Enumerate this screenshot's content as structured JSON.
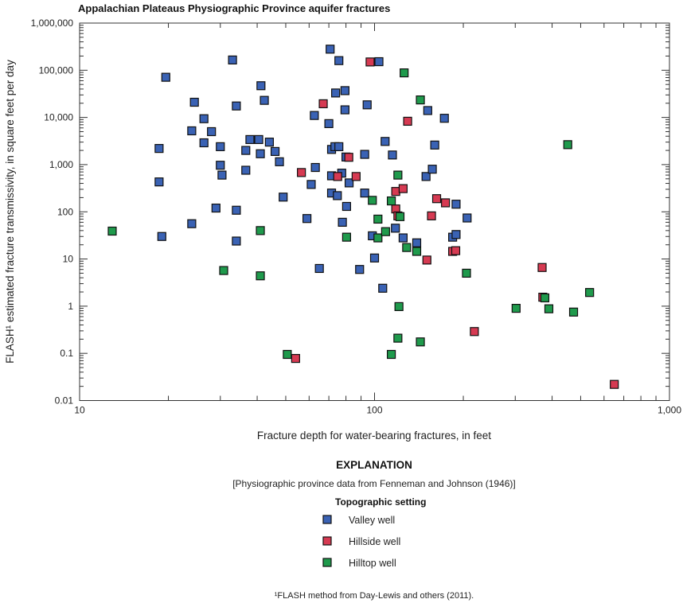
{
  "chart_data": {
    "type": "scatter",
    "title": "Appalachian Plateaus Physiographic Province aquifer fractures",
    "xlabel": "Fracture depth for water-bearing fractures, in feet",
    "ylabel": "FLASH¹ estimated fracture transmissivity, in square feet per day",
    "xscale": "log",
    "yscale": "log",
    "xlim": [
      10,
      1000
    ],
    "ylim": [
      0.01,
      1000000
    ],
    "xticks": [
      10,
      100,
      1000
    ],
    "xtick_labels": [
      "10",
      "100",
      "1,000"
    ],
    "yticks": [
      1000000,
      100000,
      10000,
      1000,
      100,
      10,
      1,
      0.1,
      0.01
    ],
    "ytick_labels": [
      "1,000,000",
      "100,000",
      "10,000",
      "1,000",
      "100",
      "10",
      "1",
      "0.1",
      "0.01"
    ],
    "grid": false,
    "legend_placement": "below",
    "series": [
      {
        "name": "Valley well",
        "color": "#3a62b4",
        "points": [
          [
            18.6,
            2200
          ],
          [
            18.6,
            430
          ],
          [
            19,
            30
          ],
          [
            19.6,
            71000
          ],
          [
            24,
            5200
          ],
          [
            24.5,
            21000
          ],
          [
            26.4,
            9400
          ],
          [
            26.4,
            2900
          ],
          [
            28,
            5000
          ],
          [
            30,
            2400
          ],
          [
            30,
            970
          ],
          [
            30.4,
            600
          ],
          [
            24,
            56
          ],
          [
            29,
            120
          ],
          [
            33,
            165000
          ],
          [
            34,
            17500
          ],
          [
            34,
            108
          ],
          [
            34,
            24
          ],
          [
            36.6,
            2000
          ],
          [
            36.6,
            760
          ],
          [
            37.8,
            3400
          ],
          [
            40.5,
            3400
          ],
          [
            41,
            1700
          ],
          [
            41.2,
            47000
          ],
          [
            42.3,
            23000
          ],
          [
            44,
            3000
          ],
          [
            46,
            1900
          ],
          [
            47.6,
            1150
          ],
          [
            49,
            205
          ],
          [
            59,
            72
          ],
          [
            61,
            380
          ],
          [
            62.5,
            11000
          ],
          [
            63,
            870
          ],
          [
            65,
            6.3
          ],
          [
            70,
            7400
          ],
          [
            70.7,
            280000
          ],
          [
            71.5,
            2100
          ],
          [
            71.5,
            580
          ],
          [
            71.5,
            250
          ],
          [
            73.4,
            2400
          ],
          [
            73.8,
            33000
          ],
          [
            74.8,
            220
          ],
          [
            75.7,
            160000
          ],
          [
            75.7,
            2400
          ],
          [
            77.4,
            660
          ],
          [
            77.8,
            60
          ],
          [
            79.4,
            37000
          ],
          [
            79.4,
            14500
          ],
          [
            80,
            1450
          ],
          [
            80.4,
            130
          ],
          [
            82,
            410
          ],
          [
            89,
            6
          ],
          [
            92.6,
            1650
          ],
          [
            92.6,
            250
          ],
          [
            94.4,
            18500
          ],
          [
            98.3,
            31
          ],
          [
            100,
            10.5
          ],
          [
            103.5,
            152000
          ],
          [
            106.6,
            2.4
          ],
          [
            108.6,
            3100
          ],
          [
            115,
            1600
          ],
          [
            117.7,
            45
          ],
          [
            125,
            28
          ],
          [
            139,
            22
          ],
          [
            149.5,
            560
          ],
          [
            151.5,
            14000
          ],
          [
            157,
            800
          ],
          [
            160,
            2600
          ],
          [
            172.5,
            9600
          ],
          [
            184,
            29
          ],
          [
            189,
            33
          ],
          [
            189,
            145
          ],
          [
            206,
            74
          ]
        ]
      },
      {
        "name": "Hillside well",
        "color": "#d63a52",
        "points": [
          [
            56.5,
            680
          ],
          [
            54,
            0.078
          ],
          [
            67,
            19500
          ],
          [
            75,
            560
          ],
          [
            81.8,
            1430
          ],
          [
            86.6,
            560
          ],
          [
            96.6,
            150000
          ],
          [
            118,
            270
          ],
          [
            118,
            115
          ],
          [
            120,
            82
          ],
          [
            125,
            310
          ],
          [
            129.5,
            8300
          ],
          [
            150.5,
            9.5
          ],
          [
            156,
            82
          ],
          [
            162.4,
            190
          ],
          [
            174,
            155
          ],
          [
            184,
            14.5
          ],
          [
            188.5,
            15
          ],
          [
            218,
            0.29
          ],
          [
            370,
            6.6
          ],
          [
            372,
            1.55
          ],
          [
            650,
            0.022
          ]
        ]
      },
      {
        "name": "Hilltop well",
        "color": "#1f9a4c",
        "points": [
          [
            12.9,
            39
          ],
          [
            30.8,
            5.7
          ],
          [
            41,
            40
          ],
          [
            41,
            4.4
          ],
          [
            50.6,
            0.095
          ],
          [
            80.4,
            29
          ],
          [
            98.3,
            175
          ],
          [
            102.7,
            70
          ],
          [
            102.7,
            28
          ],
          [
            109,
            38
          ],
          [
            114,
            170
          ],
          [
            114,
            0.095
          ],
          [
            120,
            600
          ],
          [
            122,
            79
          ],
          [
            121,
            0.98
          ],
          [
            120,
            0.21
          ],
          [
            126,
            88000
          ],
          [
            128.5,
            17.5
          ],
          [
            139,
            14.5
          ],
          [
            143,
            23500
          ],
          [
            143,
            0.175
          ],
          [
            205,
            5
          ],
          [
            302,
            0.9
          ],
          [
            378,
            1.5
          ],
          [
            390,
            0.88
          ],
          [
            452,
            2650
          ],
          [
            473,
            0.75
          ],
          [
            536,
            1.95
          ]
        ]
      }
    ]
  },
  "explanation": {
    "heading": "EXPLANATION",
    "note": "[Physiographic province data from Fenneman and Johnson (1946)]",
    "legend_title": "Topographic setting"
  },
  "footnote": "¹FLASH method from Day-Lewis and others (2011)."
}
